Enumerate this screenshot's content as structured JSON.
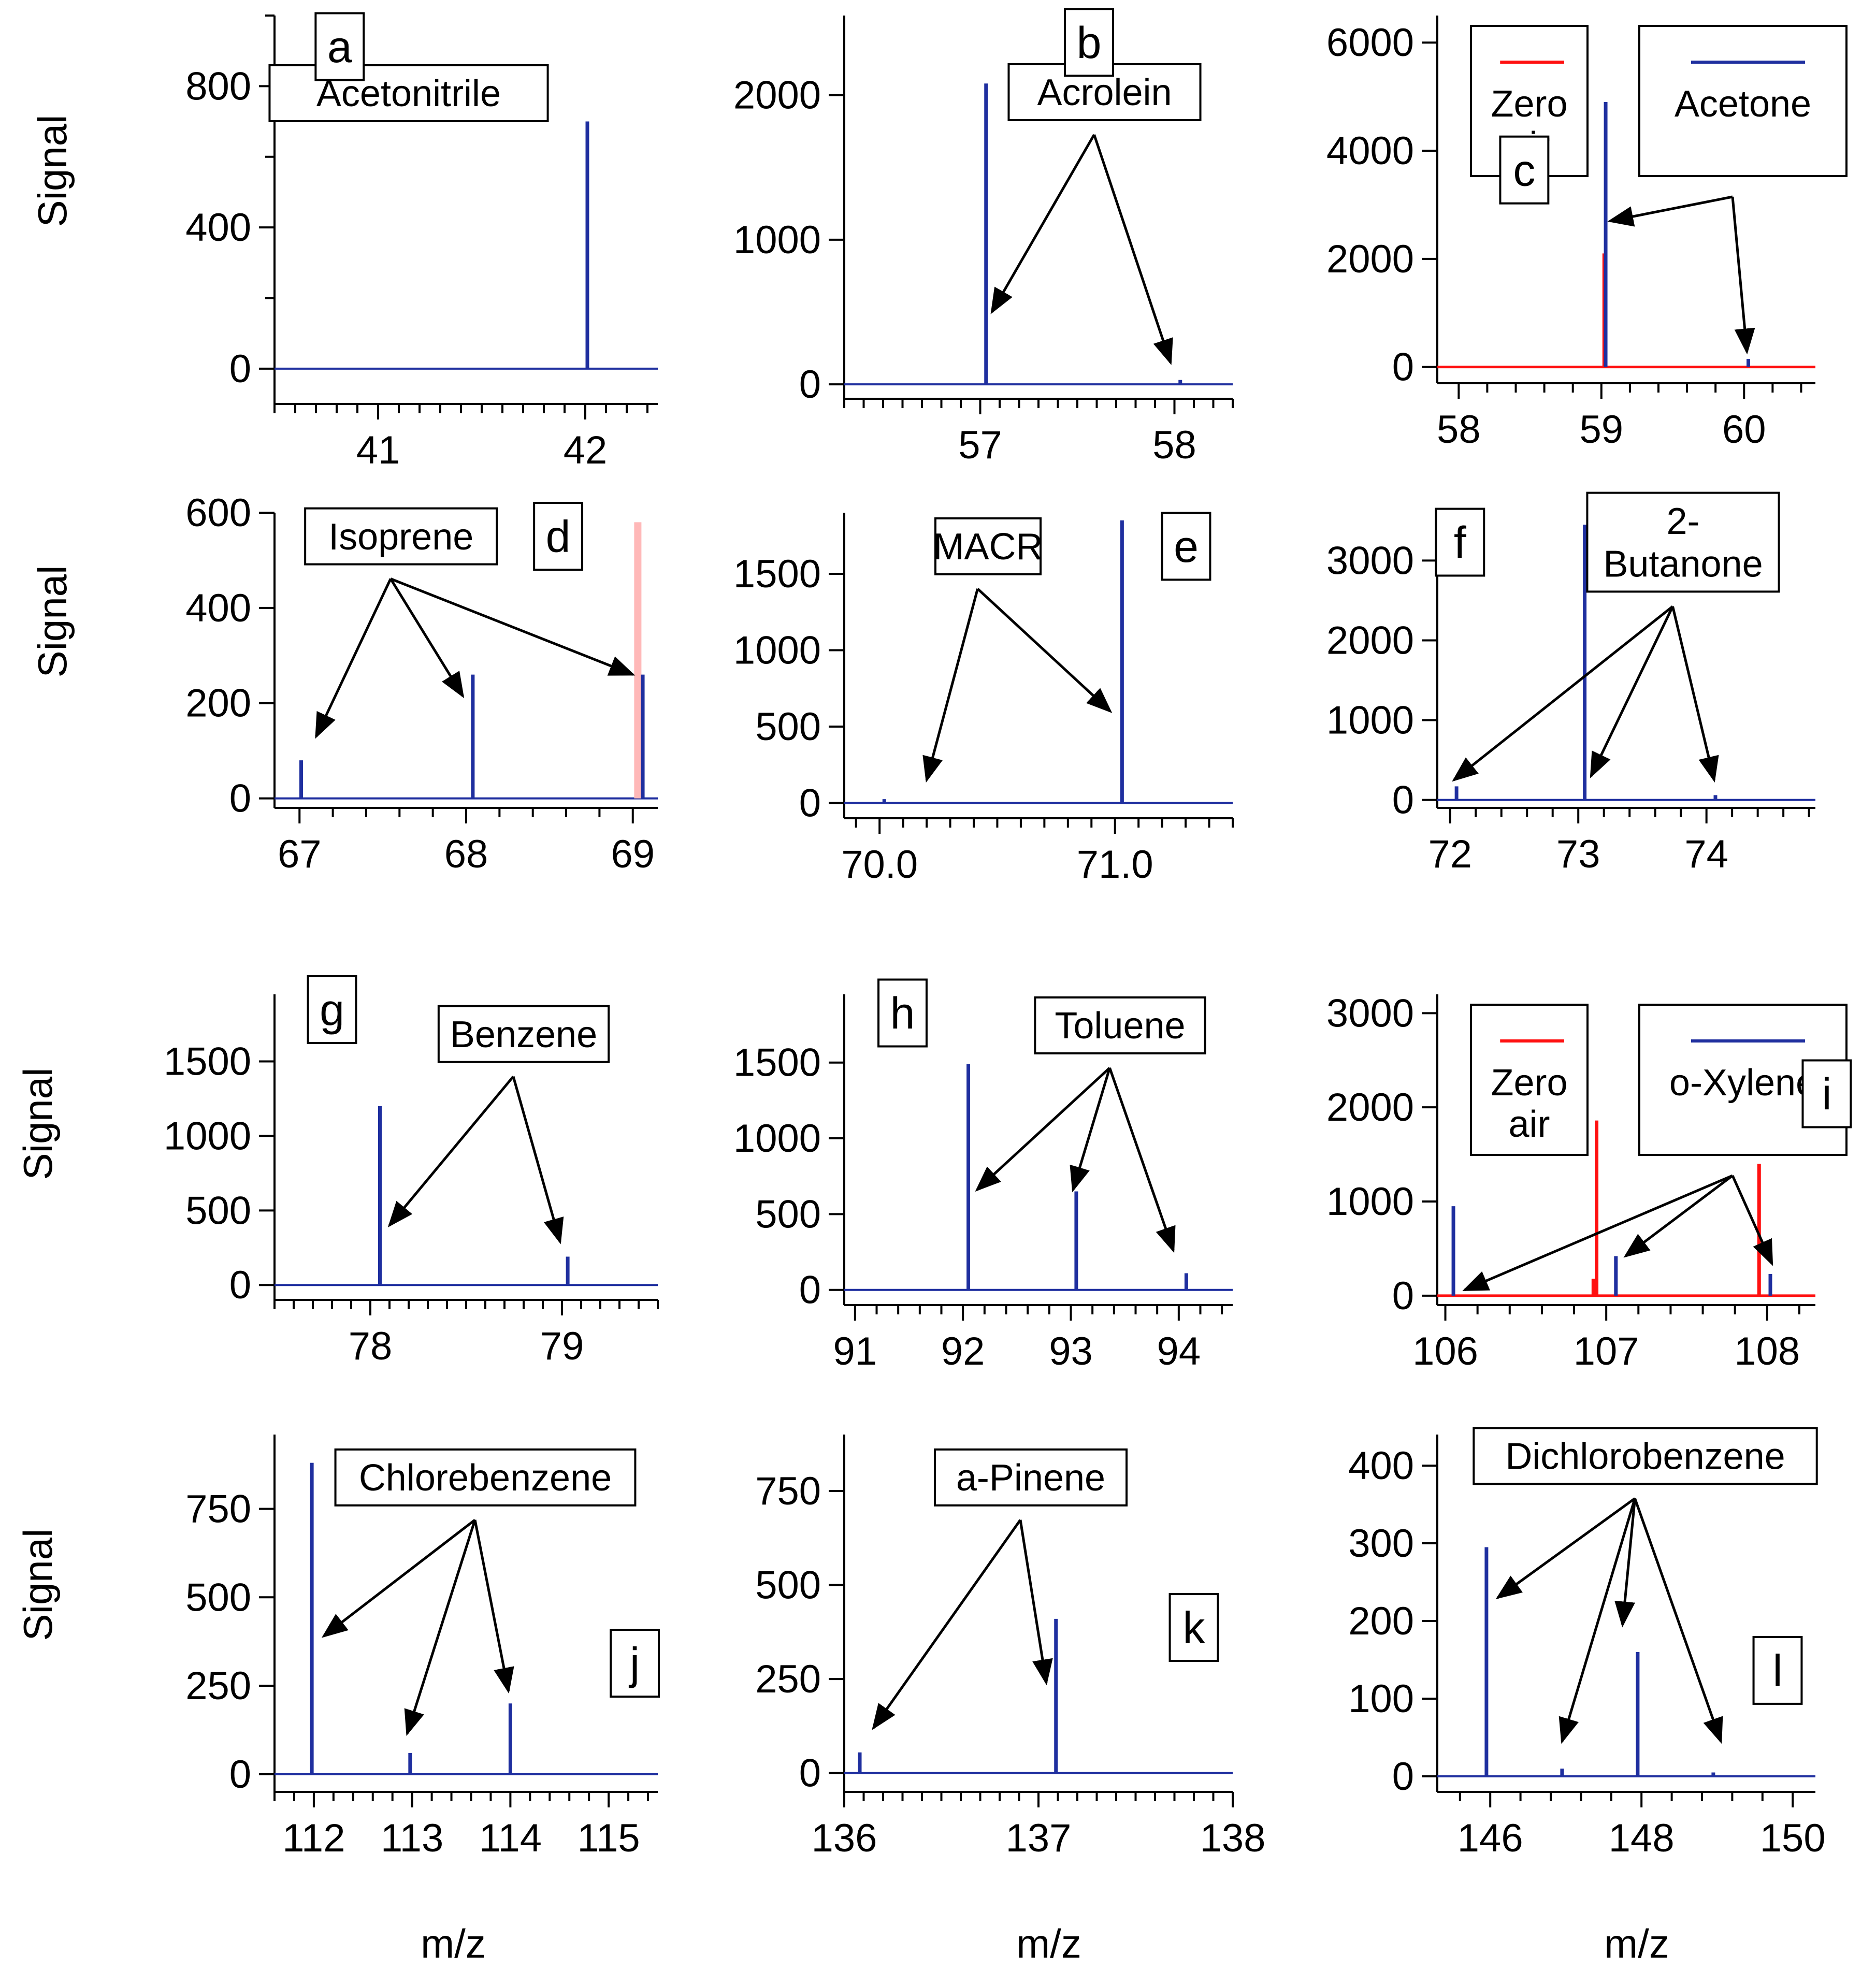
{
  "colors": {
    "sample": "#1f2f9f",
    "zero_air": "#ff1010",
    "zero_air_faint": "#ffb8b8",
    "axis": "#000000"
  },
  "ylabel": "Signal",
  "xlabel": "m/z",
  "chart_data": [
    {
      "panel": "a",
      "type": "line",
      "title": "Acetonitrile",
      "ylim": [
        -100,
        1000
      ],
      "xlim": [
        40.5,
        42.35
      ],
      "yticks": [
        "0",
        "400",
        "800"
      ],
      "ytick_values": [
        0,
        400,
        800
      ],
      "ytick_minor": [
        -200,
        200,
        600,
        1000
      ],
      "xticks": [
        "41",
        "42"
      ],
      "xtick_values": [
        41,
        42
      ],
      "xtick_minor_step": 0.1,
      "series": [
        {
          "name": "sample",
          "peaks": [
            {
              "x": 42.01,
              "y": 700
            }
          ]
        }
      ],
      "arrows": []
    },
    {
      "panel": "b",
      "type": "line",
      "title": "Acrolein",
      "ylim": [
        -100,
        2550
      ],
      "xlim": [
        56.3,
        58.3
      ],
      "yticks": [
        "0",
        "1000",
        "2000"
      ],
      "ytick_values": [
        0,
        1000,
        2000
      ],
      "ytick_minor": [],
      "xticks": [
        "57",
        "58"
      ],
      "xtick_values": [
        57,
        58
      ],
      "xtick_minor_step": 0.1,
      "series": [
        {
          "name": "sample",
          "peaks": [
            {
              "x": 57.03,
              "y": 2080
            },
            {
              "x": 58.03,
              "y": 30
            }
          ]
        }
      ],
      "arrows": [
        {
          "x": 57.06,
          "y": 500
        },
        {
          "x": 57.98,
          "y": 150
        }
      ]
    },
    {
      "panel": "c",
      "type": "line",
      "title": "Acetone",
      "ylim": [
        -300,
        6500
      ],
      "xlim": [
        57.85,
        60.5
      ],
      "yticks": [
        "0",
        "2000",
        "4000",
        "6000"
      ],
      "ytick_values": [
        0,
        2000,
        4000,
        6000
      ],
      "ytick_minor": [],
      "xticks": [
        "58",
        "59",
        "60"
      ],
      "xtick_values": [
        58,
        59,
        60
      ],
      "xtick_minor_step": 0.2,
      "legend": [
        {
          "name": "Zero",
          "name2": "air",
          "color": "#ff1010"
        },
        {
          "name": "Acetone",
          "color": "#1f2f9f"
        }
      ],
      "series": [
        {
          "name": "sample",
          "peaks": [
            {
              "x": 59.03,
              "y": 4900
            },
            {
              "x": 60.03,
              "y": 150
            }
          ]
        },
        {
          "name": "zero_air",
          "peaks": [
            {
              "x": 59.02,
              "y": 2100
            }
          ]
        }
      ],
      "arrows": [
        {
          "x": 59.06,
          "y": 2700
        },
        {
          "x": 60.02,
          "y": 280
        }
      ]
    },
    {
      "panel": "d",
      "type": "line",
      "title": "Isoprene",
      "ylim": [
        -20,
        600
      ],
      "xlim": [
        66.85,
        69.15
      ],
      "yticks": [
        "0",
        "200",
        "400",
        "600"
      ],
      "ytick_values": [
        0,
        200,
        400,
        600
      ],
      "ytick_minor": [],
      "xticks": [
        "67",
        "68",
        "69"
      ],
      "xtick_values": [
        67,
        68,
        69
      ],
      "xtick_minor_step": 0.2,
      "series": [
        {
          "name": "sample",
          "peaks": [
            {
              "x": 67.01,
              "y": 80
            },
            {
              "x": 68.04,
              "y": 260
            },
            {
              "x": 69.06,
              "y": 260
            }
          ]
        },
        {
          "name": "zero_air_faint",
          "peaks": [
            {
              "x": 69.03,
              "y": 580
            }
          ]
        }
      ],
      "arrows": [
        {
          "x": 67.1,
          "y": 130
        },
        {
          "x": 67.98,
          "y": 215
        },
        {
          "x": 69.0,
          "y": 260
        }
      ]
    },
    {
      "panel": "e",
      "type": "line",
      "title": "MACR",
      "ylim": [
        -100,
        1900
      ],
      "xlim": [
        69.85,
        71.5
      ],
      "yticks": [
        "0",
        "500",
        "1000",
        "1500"
      ],
      "ytick_values": [
        0,
        500,
        1000,
        1500
      ],
      "ytick_minor": [],
      "xticks": [
        "70.0",
        "71.0"
      ],
      "xtick_values": [
        70,
        71
      ],
      "xtick_minor_step": 0.1,
      "series": [
        {
          "name": "sample",
          "peaks": [
            {
              "x": 70.02,
              "y": 25
            },
            {
              "x": 71.03,
              "y": 1850
            }
          ]
        }
      ],
      "arrows": [
        {
          "x": 70.2,
          "y": 150
        },
        {
          "x": 70.98,
          "y": 600
        }
      ]
    },
    {
      "panel": "f",
      "type": "line",
      "title": "2-",
      "title2": "Butanone",
      "ylim": [
        -100,
        3600
      ],
      "xlim": [
        71.9,
        74.85
      ],
      "yticks": [
        "0",
        "1000",
        "2000",
        "3000"
      ],
      "ytick_values": [
        0,
        1000,
        2000,
        3000
      ],
      "ytick_minor": [],
      "xticks": [
        "72",
        "73",
        "74"
      ],
      "xtick_values": [
        72,
        73,
        74
      ],
      "xtick_minor_step": 0.2,
      "series": [
        {
          "name": "sample",
          "peaks": [
            {
              "x": 72.05,
              "y": 170
            },
            {
              "x": 73.05,
              "y": 3450
            },
            {
              "x": 74.07,
              "y": 60
            }
          ]
        }
      ],
      "arrows": [
        {
          "x": 72.03,
          "y": 250
        },
        {
          "x": 73.1,
          "y": 300
        },
        {
          "x": 74.06,
          "y": 250
        }
      ]
    },
    {
      "panel": "g",
      "type": "line",
      "title": "Benzene",
      "ylim": [
        -100,
        1950
      ],
      "xlim": [
        77.5,
        79.5
      ],
      "yticks": [
        "0",
        "500",
        "1000",
        "1500"
      ],
      "ytick_values": [
        0,
        500,
        1000,
        1500
      ],
      "ytick_minor": [],
      "xticks": [
        "78",
        "79"
      ],
      "xtick_values": [
        78,
        79
      ],
      "xtick_minor_step": 0.1,
      "series": [
        {
          "name": "sample",
          "peaks": [
            {
              "x": 78.05,
              "y": 1200
            },
            {
              "x": 79.03,
              "y": 190
            }
          ]
        }
      ],
      "arrows": [
        {
          "x": 78.1,
          "y": 400
        },
        {
          "x": 78.99,
          "y": 290
        }
      ]
    },
    {
      "panel": "h",
      "type": "line",
      "title": "Toluene",
      "ylim": [
        -100,
        1950
      ],
      "xlim": [
        90.9,
        94.5
      ],
      "yticks": [
        "0",
        "500",
        "1000",
        "1500"
      ],
      "ytick_values": [
        0,
        500,
        1000,
        1500
      ],
      "ytick_minor": [],
      "xticks": [
        "91",
        "92",
        "93",
        "94"
      ],
      "xtick_values": [
        91,
        92,
        93,
        94
      ],
      "xtick_minor_step": 0.2,
      "series": [
        {
          "name": "sample",
          "peaks": [
            {
              "x": 92.05,
              "y": 1490
            },
            {
              "x": 93.05,
              "y": 650
            },
            {
              "x": 94.07,
              "y": 110
            }
          ]
        }
      ],
      "arrows": [
        {
          "x": 92.13,
          "y": 660
        },
        {
          "x": 93.02,
          "y": 660
        },
        {
          "x": 93.95,
          "y": 260
        }
      ]
    },
    {
      "panel": "i",
      "type": "line",
      "title": "o-Xylene",
      "ylim": [
        -100,
        3200
      ],
      "xlim": [
        105.95,
        108.3
      ],
      "yticks": [
        "0",
        "1000",
        "2000",
        "3000"
      ],
      "ytick_values": [
        0,
        1000,
        2000,
        3000
      ],
      "ytick_minor": [],
      "xticks": [
        "106",
        "107",
        "108"
      ],
      "xtick_values": [
        106,
        107,
        108
      ],
      "xtick_minor_step": 0.2,
      "legend": [
        {
          "name": "Zero",
          "name2": "air",
          "color": "#ff1010"
        },
        {
          "name": "o-Xylene",
          "color": "#1f2f9f"
        }
      ],
      "series": [
        {
          "name": "sample",
          "peaks": [
            {
              "x": 106.05,
              "y": 950
            },
            {
              "x": 107.06,
              "y": 420
            },
            {
              "x": 108.02,
              "y": 230
            }
          ]
        },
        {
          "name": "zero_air",
          "peaks": [
            {
              "x": 106.94,
              "y": 1860
            },
            {
              "x": 107.95,
              "y": 1400
            },
            {
              "x": 106.92,
              "y": 180
            }
          ]
        }
      ],
      "arrows": [
        {
          "x": 106.12,
          "y": 60
        },
        {
          "x": 107.12,
          "y": 420
        },
        {
          "x": 108.03,
          "y": 340
        }
      ]
    },
    {
      "panel": "j",
      "type": "line",
      "title": "Chlorebenzene",
      "ylim": [
        -50,
        960
      ],
      "xlim": [
        111.6,
        115.5
      ],
      "yticks": [
        "0",
        "250",
        "500",
        "750"
      ],
      "ytick_values": [
        0,
        250,
        500,
        750
      ],
      "ytick_minor": [],
      "xticks": [
        "112",
        "113",
        "114",
        "115"
      ],
      "xtick_values": [
        112,
        113,
        114,
        115
      ],
      "xtick_minor_step": 0.2,
      "series": [
        {
          "name": "sample",
          "peaks": [
            {
              "x": 111.98,
              "y": 880
            },
            {
              "x": 112.98,
              "y": 60
            },
            {
              "x": 114.0,
              "y": 200
            }
          ]
        }
      ],
      "arrows": [
        {
          "x": 112.1,
          "y": 390
        },
        {
          "x": 112.95,
          "y": 115
        },
        {
          "x": 113.98,
          "y": 235
        }
      ]
    },
    {
      "panel": "k",
      "type": "line",
      "title": "a-Pinene",
      "ylim": [
        -50,
        900
      ],
      "xlim": [
        136.0,
        138.0
      ],
      "yticks": [
        "0",
        "250",
        "500",
        "750"
      ],
      "ytick_values": [
        0,
        250,
        500,
        750
      ],
      "ytick_minor": [],
      "xticks": [
        "136",
        "137",
        "138"
      ],
      "xtick_values": [
        136,
        137,
        138
      ],
      "xtick_minor_step": 0.1,
      "series": [
        {
          "name": "sample",
          "peaks": [
            {
              "x": 136.08,
              "y": 55
            },
            {
              "x": 137.09,
              "y": 410
            }
          ]
        }
      ],
      "arrows": [
        {
          "x": 136.15,
          "y": 120
        },
        {
          "x": 137.04,
          "y": 240
        }
      ]
    },
    {
      "panel": "l",
      "type": "line",
      "title": "Dichlorobenzene",
      "ylim": [
        -20,
        440
      ],
      "xlim": [
        145.3,
        150.3
      ],
      "yticks": [
        "0",
        "100",
        "200",
        "300",
        "400"
      ],
      "ytick_values": [
        0,
        100,
        200,
        300,
        400
      ],
      "ytick_minor": [],
      "xticks": [
        "146",
        "148",
        "150"
      ],
      "xtick_values": [
        146,
        148,
        150
      ],
      "xtick_minor_step": 0.4,
      "series": [
        {
          "name": "sample",
          "peaks": [
            {
              "x": 145.95,
              "y": 295
            },
            {
              "x": 146.95,
              "y": 10
            },
            {
              "x": 147.95,
              "y": 160
            },
            {
              "x": 148.95,
              "y": 5
            }
          ]
        }
      ],
      "arrows": [
        {
          "x": 146.1,
          "y": 230
        },
        {
          "x": 146.95,
          "y": 45
        },
        {
          "x": 147.75,
          "y": 195
        },
        {
          "x": 149.05,
          "y": 45
        }
      ]
    }
  ]
}
